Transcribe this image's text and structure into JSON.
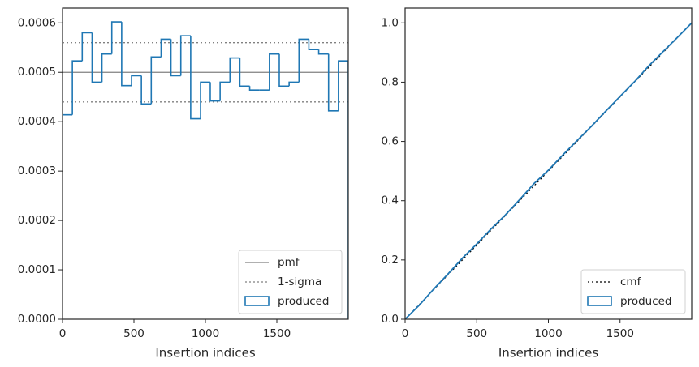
{
  "chart_data": [
    {
      "type": "histogram",
      "xlabel": "Insertion indices",
      "name": "produced",
      "color": "#1f77b4",
      "bins": [
        0,
        69,
        138,
        207,
        276,
        345,
        414,
        483,
        552,
        621,
        690,
        759,
        828,
        897,
        966,
        1034,
        1103,
        1172,
        1241,
        1310,
        1379,
        1448,
        1517,
        1586,
        1655,
        1724,
        1793,
        1862,
        1931,
        2000
      ],
      "values": [
        0.000414,
        0.000523,
        0.00058,
        0.00048,
        0.000537,
        0.000602,
        0.000473,
        0.000493,
        0.000436,
        0.000531,
        0.000567,
        0.000493,
        0.000574,
        0.000406,
        0.00048,
        0.000442,
        0.00048,
        0.000529,
        0.000472,
        0.000464,
        0.000464,
        0.000537,
        0.000472,
        0.00048,
        0.000567,
        0.000546,
        0.000537,
        0.000422,
        0.000523
      ],
      "hlines": [
        {
          "name": "pmf",
          "values": [
            0.0005
          ],
          "color": "#808080",
          "style": "solid"
        },
        {
          "name": "1-sigma",
          "values": [
            0.00044,
            0.00056
          ],
          "color": "#808080",
          "style": "dotted"
        }
      ],
      "xlim": [
        0,
        2000
      ],
      "xticks": [
        0,
        500,
        1000,
        1500
      ],
      "ylim": [
        0,
        0.00063
      ],
      "yticks": [
        {
          "value": 0,
          "label": "0.0000"
        },
        {
          "value": 0.0001,
          "label": "0.0001"
        },
        {
          "value": 0.0002,
          "label": "0.0002"
        },
        {
          "value": 0.0003,
          "label": "0.0003"
        },
        {
          "value": 0.0004,
          "label": "0.0004"
        },
        {
          "value": 0.0005,
          "label": "0.0005"
        },
        {
          "value": 0.0006,
          "label": "0.0006"
        }
      ],
      "legend": "lower right"
    },
    {
      "type": "line",
      "xlabel": "Insertion indices",
      "series": [
        {
          "name": "cmf",
          "color": "#000000",
          "style": "dotted",
          "x": [
            0,
            2000
          ],
          "values": [
            0,
            1
          ]
        },
        {
          "name": "produced",
          "color": "#1f77b4",
          "style": "step",
          "x": [
            0,
            100,
            200,
            300,
            400,
            500,
            600,
            700,
            800,
            900,
            1000,
            1100,
            1200,
            1300,
            1400,
            1500,
            1600,
            1700,
            1800,
            1900,
            2000
          ],
          "values": [
            0,
            0.048,
            0.102,
            0.153,
            0.206,
            0.254,
            0.305,
            0.352,
            0.404,
            0.458,
            0.503,
            0.554,
            0.603,
            0.651,
            0.702,
            0.752,
            0.801,
            0.855,
            0.903,
            0.951,
            1.0
          ]
        }
      ],
      "xlim": [
        0,
        2000
      ],
      "xticks": [
        0,
        500,
        1000,
        1500
      ],
      "ylim": [
        0,
        1.05
      ],
      "yticks": [
        {
          "value": 0,
          "label": "0.0"
        },
        0.2,
        0.4,
        0.6,
        0.8,
        {
          "value": 1,
          "label": "1.0"
        }
      ],
      "legend": "lower right"
    }
  ]
}
